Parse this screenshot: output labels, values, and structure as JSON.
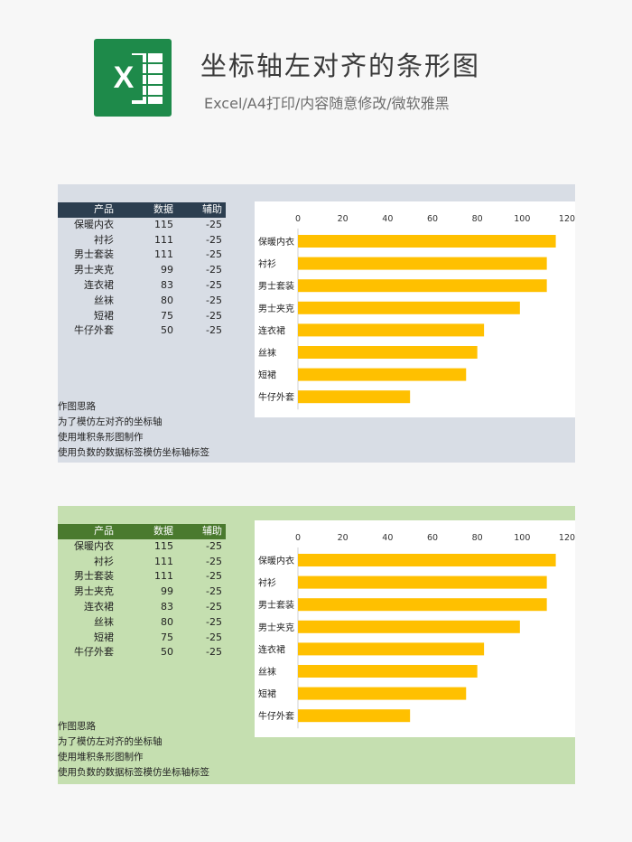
{
  "header": {
    "logo_letter": "X",
    "title": "坐标轴左对齐的条形图",
    "subtitle": "Excel/A4打印/内容随意修改/微软雅黑"
  },
  "colors": {
    "bar": "#FFC000",
    "panel1_bg": "#d8dde5",
    "panel2_bg": "#c5dfb0",
    "hdr1": "#2c3e50",
    "hdr2": "#4a7a2e"
  },
  "table": {
    "headers": [
      "产品",
      "数据",
      "辅助"
    ],
    "rows": [
      [
        "保暖内衣",
        "115",
        "-25"
      ],
      [
        "衬衫",
        "111",
        "-25"
      ],
      [
        "男士套装",
        "111",
        "-25"
      ],
      [
        "男士夹克",
        "99",
        "-25"
      ],
      [
        "连衣裙",
        "83",
        "-25"
      ],
      [
        "丝袜",
        "80",
        "-25"
      ],
      [
        "短裙",
        "75",
        "-25"
      ],
      [
        "牛仔外套",
        "50",
        "-25"
      ]
    ]
  },
  "notes": [
    "作图思路",
    "为了模仿左对齐的坐标轴",
    "使用堆积条形图制作",
    "使用负数的数据标签模仿坐标轴标签"
  ],
  "chart_data": [
    {
      "type": "bar",
      "orientation": "horizontal",
      "categories": [
        "保暖内衣",
        "衬衫",
        "男士套装",
        "男士夹克",
        "连衣裙",
        "丝袜",
        "短裙",
        "牛仔外套"
      ],
      "values": [
        115,
        111,
        111,
        99,
        83,
        80,
        75,
        50
      ],
      "xlim": [
        0,
        120
      ],
      "xticks": [
        0,
        20,
        40,
        60,
        80,
        100,
        120
      ],
      "grid": false
    },
    {
      "type": "bar",
      "orientation": "horizontal",
      "categories": [
        "保暖内衣",
        "衬衫",
        "男士套装",
        "男士夹克",
        "连衣裙",
        "丝袜",
        "短裙",
        "牛仔外套"
      ],
      "values": [
        115,
        111,
        111,
        99,
        83,
        80,
        75,
        50
      ],
      "xlim": [
        0,
        120
      ],
      "xticks": [
        0,
        20,
        40,
        60,
        80,
        100,
        120
      ],
      "grid": false
    }
  ]
}
